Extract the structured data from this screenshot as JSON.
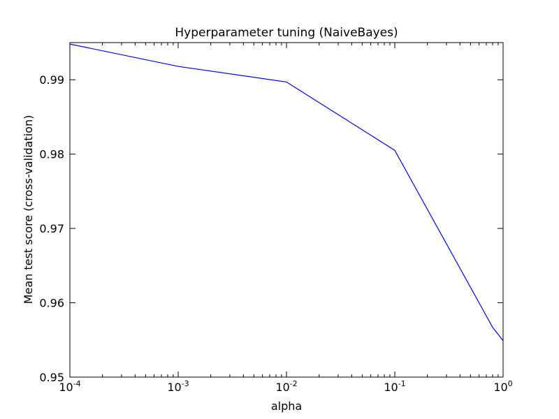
{
  "chart_data": {
    "type": "line",
    "title": "Hyperparameter tuning (NaiveBayes)",
    "xlabel": "alpha",
    "ylabel": "Mean test score (cross-validation)",
    "xscale": "log",
    "xlim": [
      0.0001,
      1
    ],
    "ylim": [
      0.95,
      0.995
    ],
    "grid": false,
    "line_color": "#0000ff",
    "x_ticks": [
      {
        "value": 0.0001,
        "base": "10",
        "exp": "-4"
      },
      {
        "value": 0.001,
        "base": "10",
        "exp": "-3"
      },
      {
        "value": 0.01,
        "base": "10",
        "exp": "-2"
      },
      {
        "value": 0.1,
        "base": "10",
        "exp": "-1"
      },
      {
        "value": 1,
        "base": "10",
        "exp": "0"
      }
    ],
    "y_ticks": [
      {
        "value": 0.95,
        "label": "0.95"
      },
      {
        "value": 0.96,
        "label": "0.96"
      },
      {
        "value": 0.97,
        "label": "0.97"
      },
      {
        "value": 0.98,
        "label": "0.98"
      },
      {
        "value": 0.99,
        "label": "0.99"
      }
    ],
    "series": [
      {
        "x": [
          0.0001,
          0.001,
          0.01,
          0.1,
          0.8,
          1
        ],
        "y": [
          0.9948,
          0.9918,
          0.9897,
          0.9805,
          0.9567,
          0.9549
        ]
      }
    ]
  }
}
